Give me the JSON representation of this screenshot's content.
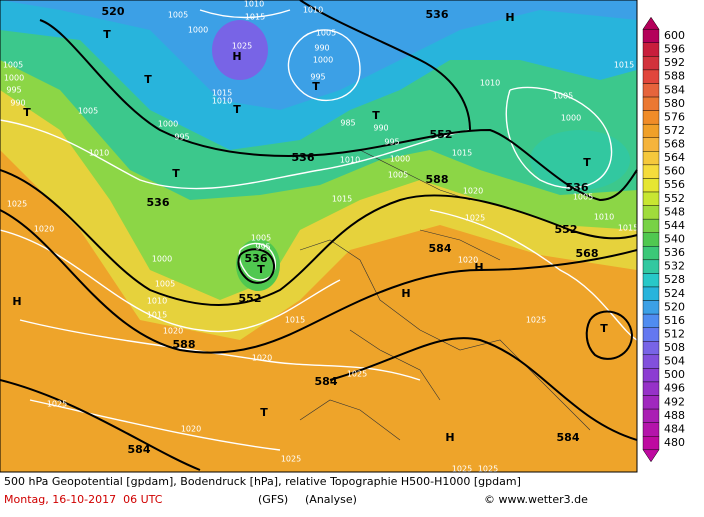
{
  "map_labels": [
    "520",
    "1005",
    "1010",
    "1015",
    "1010",
    "536",
    "H",
    "T",
    "1000",
    "1005",
    "H",
    "1025",
    "990",
    "1000",
    "1005",
    "1000",
    "995",
    "990",
    "T",
    "995",
    "T",
    "1015",
    "1010",
    "T",
    "T",
    "1005",
    "T",
    "1000",
    "995",
    "1010",
    "1015",
    "1005",
    "1000",
    "985",
    "990",
    "552",
    "995",
    "1010",
    "536",
    "1010",
    "1000",
    "1015",
    "T",
    "1005",
    "T",
    "588",
    "536",
    "1005",
    "536",
    "1015",
    "1020",
    "1025",
    "1020",
    "1025",
    "1010",
    "1015",
    "1005",
    "995",
    "552",
    "584",
    "T",
    "536",
    "1000",
    "568",
    "1020",
    "H",
    "1005",
    "H",
    "552",
    "1010",
    "1015",
    "H",
    "1025",
    "1015",
    "1020",
    "T",
    "588",
    "1020",
    "1025",
    "584",
    "1025",
    "T",
    "1020",
    "H",
    "584",
    "584",
    "1025",
    "1025",
    "1025"
  ],
  "legend": {
    "ticks": [
      600,
      596,
      592,
      588,
      584,
      580,
      576,
      572,
      568,
      564,
      560,
      556,
      552,
      548,
      544,
      540,
      536,
      532,
      528,
      524,
      520,
      516,
      512,
      508,
      504,
      500,
      496,
      492,
      488,
      484,
      480
    ],
    "colors": [
      "#b4005a",
      "#c81e3c",
      "#d2323c",
      "#e1463c",
      "#e6643c",
      "#eb7832",
      "#f08c28",
      "#f0a028",
      "#f5b43c",
      "#f5c83c",
      "#f5dc3c",
      "#e6e632",
      "#c8e632",
      "#a0dc3c",
      "#78d246",
      "#50c850",
      "#3cc878",
      "#32c8a0",
      "#28c8c8",
      "#28b4dc",
      "#3ca0e6",
      "#508cf0",
      "#6478f0",
      "#7864e6",
      "#8250dc",
      "#8c3cd2",
      "#9632c8",
      "#a028be",
      "#aa1eb4",
      "#b414aa",
      "#be0aa0"
    ]
  },
  "footer": {
    "description": "500 hPa Geopotential [gpdam], Bodendruck [hPa], relative Topographie H500-H1000 [gpdam]",
    "date": "Montag, 16-10-2017  06 UTC",
    "model": "(GFS)",
    "run": "(Analyse)",
    "credit": "© www.wetter3.de"
  }
}
